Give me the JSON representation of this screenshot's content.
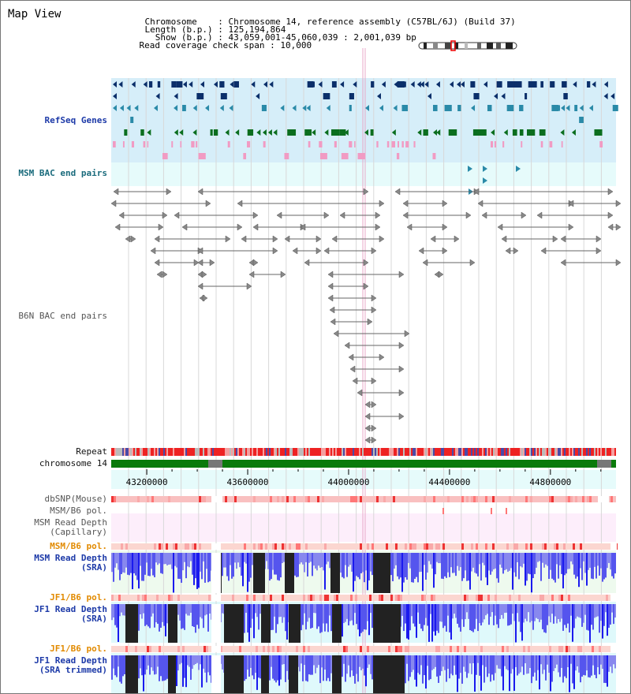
{
  "app_title": "Map View",
  "info": {
    "chromosome_key": "Chromosome",
    "chromosome_val": "Chromosome 14, reference assembly (C57BL/6J) (Build 37)",
    "length_key": "Length (b.p.)",
    "length_val": "125,194,864",
    "show_key": "Show (b.p.)",
    "show_val": "43,059,001-45,060,039 : 2,001,039 bp",
    "span_key": "Read coverage check span",
    "span_val": "10,000"
  },
  "tracks": {
    "refseq": "RefSeq Genes",
    "msm_bac": "MSM BAC end pairs",
    "b6n_bac": "B6N BAC end pairs",
    "repeat": "Repeat",
    "chromosome": "chromosome 14",
    "dbsnp": "dbSNP(Mouse)",
    "msm_b6_pol_1": "MSM/B6 pol.",
    "msm_read_depth_cap": "MSM Read Depth\n(Capillary)",
    "msm_b6_pol_2": "MSM/B6 pol.",
    "msm_read_depth_sra": "MSM Read Depth\n(SRA)",
    "jf1_b6_pol_1": "JF1/B6 pol.",
    "jf1_read_depth_sra": "JF1 Read Depth\n(SRA)",
    "jf1_b6_pol_2": "JF1/B6 pol.",
    "jf1_read_depth_trim": "JF1 Read Depth\n(SRA trimmed)"
  },
  "axis": {
    "ticks": [
      "43200000",
      "43600000",
      "44000000",
      "44400000",
      "44800000"
    ],
    "tick_values": [
      43200000,
      43600000,
      44000000,
      44400000,
      44800000
    ],
    "range": [
      43059001,
      45060039
    ]
  },
  "colors": {
    "refseq_bg": "#d6eef9",
    "msm_bac_bg": "#e6fbfb",
    "pol_bg": "#ffd6d6",
    "depth_msm_bg": "#eefaee",
    "depth_jf1_bg": "#dff9fb",
    "capillary_bg": "#fdeefb",
    "chrom_green": "#0a7a0a",
    "label_blue": "#1d3aa8",
    "label_orange": "#e28a00"
  }
}
